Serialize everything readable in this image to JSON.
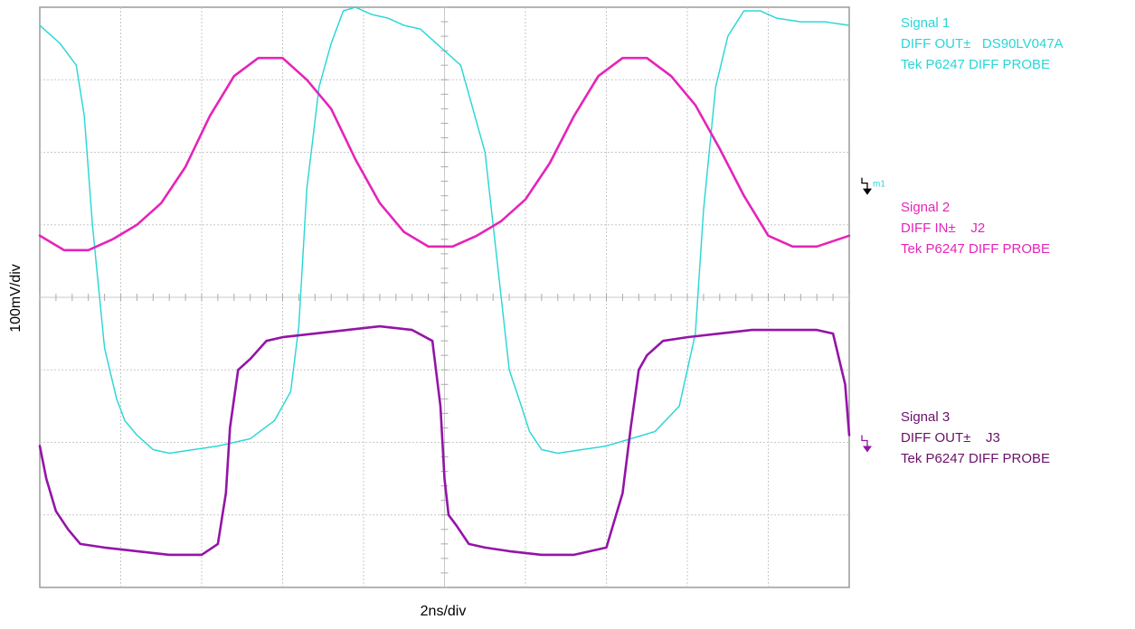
{
  "chart_data": {
    "type": "line",
    "xlabel": "2ns/div",
    "ylabel": "100mV/div",
    "grid": true,
    "x_divisions": 10,
    "y_divisions": 8,
    "x_unit": "div",
    "y_unit": "div",
    "xlim": [
      0,
      10
    ],
    "ylim": [
      0,
      8
    ],
    "series": [
      {
        "name": "Signal 1",
        "color": "#29d6d6",
        "x": [
          0,
          0.25,
          0.45,
          0.55,
          0.65,
          0.8,
          0.95,
          1.05,
          1.2,
          1.4,
          1.6,
          1.9,
          2.2,
          2.6,
          2.9,
          3.1,
          3.2,
          3.3,
          3.45,
          3.6,
          3.75,
          3.9,
          4.1,
          4.3,
          4.5,
          4.7,
          4.9,
          5.2,
          5.5,
          5.8,
          5.95,
          6.05,
          6.2,
          6.4,
          6.7,
          7.0,
          7.3,
          7.6,
          7.9,
          8.1,
          8.2,
          8.35,
          8.5,
          8.7,
          8.9,
          9.1,
          9.4,
          9.7,
          10.0
        ],
        "y": [
          7.75,
          7.5,
          7.2,
          6.5,
          5.0,
          3.3,
          2.6,
          2.3,
          2.1,
          1.9,
          1.85,
          1.9,
          1.95,
          2.05,
          2.3,
          2.7,
          3.6,
          5.5,
          6.9,
          7.5,
          7.95,
          8.0,
          7.9,
          7.85,
          7.75,
          7.7,
          7.5,
          7.2,
          6.0,
          3.0,
          2.5,
          2.15,
          1.9,
          1.85,
          1.9,
          1.95,
          2.05,
          2.15,
          2.5,
          3.5,
          5.2,
          6.9,
          7.6,
          7.95,
          7.95,
          7.85,
          7.8,
          7.8,
          7.75
        ]
      },
      {
        "name": "Signal 2",
        "color": "#e524b8",
        "x": [
          0,
          0.3,
          0.6,
          0.9,
          1.2,
          1.5,
          1.8,
          2.1,
          2.4,
          2.7,
          3.0,
          3.3,
          3.6,
          3.9,
          4.2,
          4.5,
          4.8,
          5.1,
          5.4,
          5.7,
          6.0,
          6.3,
          6.6,
          6.9,
          7.2,
          7.5,
          7.8,
          8.1,
          8.4,
          8.7,
          9.0,
          9.3,
          9.6,
          10.0
        ],
        "y": [
          4.85,
          4.65,
          4.65,
          4.8,
          5.0,
          5.3,
          5.8,
          6.5,
          7.05,
          7.3,
          7.3,
          7.0,
          6.6,
          5.9,
          5.3,
          4.9,
          4.7,
          4.7,
          4.85,
          5.05,
          5.35,
          5.85,
          6.5,
          7.05,
          7.3,
          7.3,
          7.05,
          6.65,
          6.05,
          5.4,
          4.85,
          4.7,
          4.7,
          4.85
        ]
      },
      {
        "name": "Signal 3",
        "color": "#9414a8",
        "x": [
          0,
          0.08,
          0.2,
          0.35,
          0.5,
          0.8,
          1.2,
          1.6,
          2.0,
          2.2,
          2.3,
          2.35,
          2.45,
          2.6,
          2.8,
          3.0,
          3.4,
          3.8,
          4.2,
          4.6,
          4.85,
          4.95,
          5.0,
          5.05,
          5.15,
          5.3,
          5.5,
          5.8,
          6.2,
          6.6,
          7.0,
          7.2,
          7.3,
          7.4,
          7.5,
          7.7,
          8.0,
          8.4,
          8.8,
          9.2,
          9.6,
          9.8,
          9.95,
          10.0
        ],
        "y": [
          1.95,
          1.5,
          1.05,
          0.8,
          0.6,
          0.55,
          0.5,
          0.45,
          0.45,
          0.6,
          1.3,
          2.2,
          3.0,
          3.15,
          3.4,
          3.45,
          3.5,
          3.55,
          3.6,
          3.55,
          3.4,
          2.5,
          1.5,
          1.0,
          0.85,
          0.6,
          0.55,
          0.5,
          0.45,
          0.45,
          0.55,
          1.3,
          2.2,
          3.0,
          3.2,
          3.4,
          3.45,
          3.5,
          3.55,
          3.55,
          3.55,
          3.5,
          2.8,
          2.1
        ]
      }
    ],
    "markers": [
      {
        "label": "m1",
        "color": "#000000",
        "channel": "Signal 1",
        "y_div": 5.55
      },
      {
        "label": "",
        "color": "#9414a8",
        "channel": "Signal 3",
        "y_div": 2.0
      }
    ]
  },
  "legend": [
    {
      "lines": [
        "Signal 1",
        "DIFF OUT±   DS90LV047A",
        "Tek P6247 DIFF PROBE"
      ],
      "color": "#29d6d6"
    },
    {
      "lines": [
        "Signal 2",
        "DIFF IN±    J2",
        "Tek P6247 DIFF PROBE"
      ],
      "color": "#e524b8"
    },
    {
      "lines": [
        "Signal 3",
        "DIFF OUT±    J3",
        "Tek P6247 DIFF PROBE"
      ],
      "color": "#6a1066"
    }
  ],
  "grid_color": "#c8c8c8",
  "frame_color": "#9a9a9a"
}
